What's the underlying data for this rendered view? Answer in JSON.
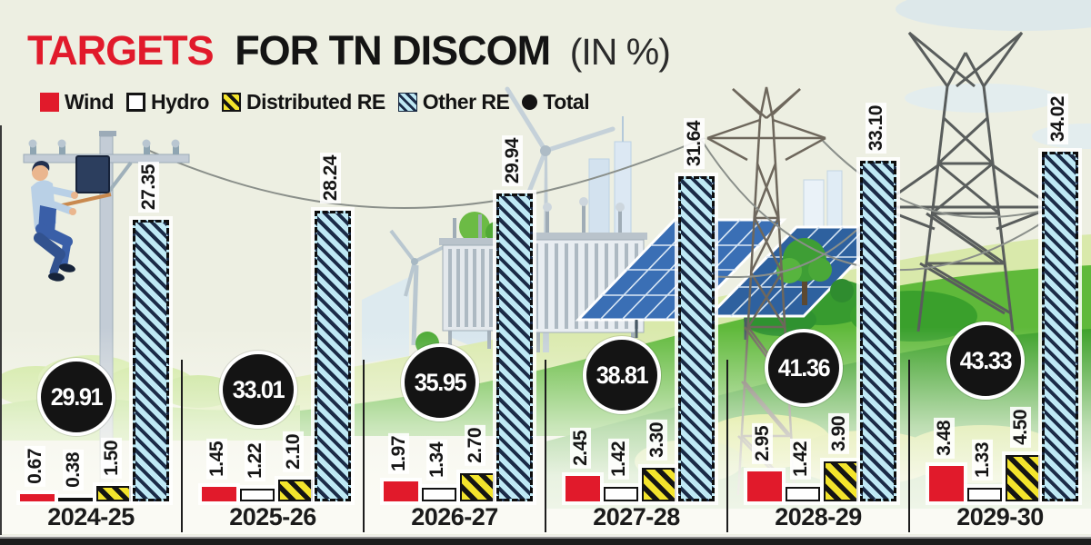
{
  "title": {
    "highlight": "TARGETS",
    "rest": "FOR TN DISCOM",
    "suffix": "(IN %)"
  },
  "legend": [
    {
      "label": "Wind",
      "swatch": "wind"
    },
    {
      "label": "Hydro",
      "swatch": "hydro"
    },
    {
      "label": "Distributed RE",
      "swatch": "distributed"
    },
    {
      "label": "Other RE",
      "swatch": "other"
    },
    {
      "label": "Total",
      "swatch": "total"
    }
  ],
  "colors": {
    "accent_red": "#e11a2b",
    "distributed_yellow": "#f3e42c",
    "other_re_blue": "#bfe9f5",
    "stripe_dark": "#1b2b47",
    "total_black": "#141414",
    "background_cream": "#edefe2"
  },
  "chart_data": {
    "type": "bar",
    "title": "TARGETS FOR TN DISCOM (IN %)",
    "unit": "%",
    "categories": [
      "2024-25",
      "2025-26",
      "2026-27",
      "2027-28",
      "2028-29",
      "2029-30"
    ],
    "series": [
      {
        "name": "Wind",
        "values": [
          0.67,
          1.45,
          1.97,
          2.45,
          2.95,
          3.48
        ]
      },
      {
        "name": "Hydro",
        "values": [
          0.38,
          1.22,
          1.34,
          1.42,
          1.42,
          1.33
        ]
      },
      {
        "name": "Distributed RE",
        "values": [
          1.5,
          2.1,
          2.7,
          3.3,
          3.9,
          4.5
        ]
      },
      {
        "name": "Other RE",
        "values": [
          27.35,
          28.24,
          29.94,
          31.64,
          33.1,
          34.02
        ]
      },
      {
        "name": "Total",
        "values": [
          29.91,
          33.01,
          35.95,
          38.81,
          41.36,
          43.33
        ]
      }
    ],
    "legend_position": "top",
    "grid": false,
    "value_labels": "rotated-90, two decimals; totals shown in black circles"
  }
}
